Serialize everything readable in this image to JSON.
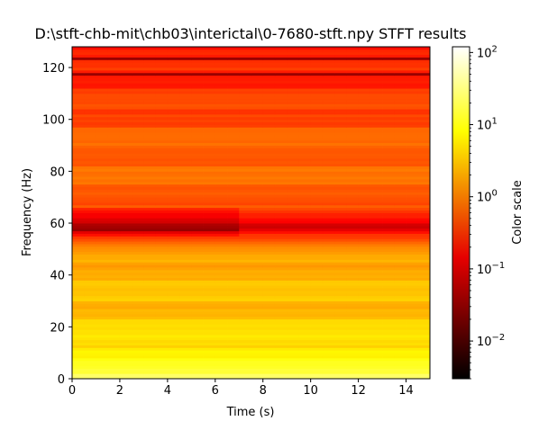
{
  "chart_data": {
    "type": "heatmap",
    "title": "D:\\stft-chb-mit\\chb03\\interictal\\0-7680-stft.npy STFT results",
    "xlabel": "Time (s)",
    "ylabel": "Frequency (Hz)",
    "xlim": [
      0,
      15
    ],
    "ylim": [
      0,
      128
    ],
    "x_ticks": [
      0,
      2,
      4,
      6,
      8,
      10,
      12,
      14
    ],
    "x_tick_labels": [
      "0",
      "2",
      "4",
      "6",
      "8",
      "10",
      "12",
      "14"
    ],
    "y_ticks": [
      0,
      20,
      40,
      60,
      80,
      100,
      120
    ],
    "y_tick_labels": [
      "0",
      "20",
      "40",
      "60",
      "80",
      "100",
      "120"
    ],
    "colormap": "hot",
    "color_scale": "log",
    "colorbar": {
      "label": "Color scale",
      "range": [
        0.003,
        120
      ],
      "ticks": [
        0.01,
        0.1,
        1,
        10,
        100
      ],
      "tick_bases": [
        "10",
        "10",
        "10",
        "10",
        "10"
      ],
      "tick_exponents": [
        "−2",
        "−1",
        "0",
        "1",
        "2"
      ]
    },
    "frequency_profile": [
      {
        "freq": 0,
        "value": 30
      },
      {
        "freq": 2,
        "value": 15
      },
      {
        "freq": 5,
        "value": 10
      },
      {
        "freq": 10,
        "value": 8
      },
      {
        "freq": 13,
        "value": 5
      },
      {
        "freq": 20,
        "value": 4
      },
      {
        "freq": 30,
        "value": 3
      },
      {
        "freq": 40,
        "value": 2.5
      },
      {
        "freq": 48,
        "value": 1.8
      },
      {
        "freq": 52,
        "value": 0.9
      },
      {
        "freq": 56,
        "value": 0.3
      },
      {
        "freq": 58,
        "value": 0.08
      },
      {
        "freq": 60,
        "value": 0.12
      },
      {
        "freq": 63,
        "value": 0.2
      },
      {
        "freq": 66,
        "value": 0.5
      },
      {
        "freq": 72,
        "value": 0.8
      },
      {
        "freq": 80,
        "value": 0.8
      },
      {
        "freq": 90,
        "value": 0.7
      },
      {
        "freq": 100,
        "value": 0.5
      },
      {
        "freq": 110,
        "value": 0.35
      },
      {
        "freq": 117,
        "value": 0.25
      },
      {
        "freq": 120,
        "value": 0.3
      },
      {
        "freq": 123,
        "value": 0.2
      },
      {
        "freq": 128,
        "value": 0.25
      }
    ],
    "dark_lines_hz": [
      57,
      117,
      123
    ],
    "notch_region_time_range": [
      0,
      7
    ]
  }
}
